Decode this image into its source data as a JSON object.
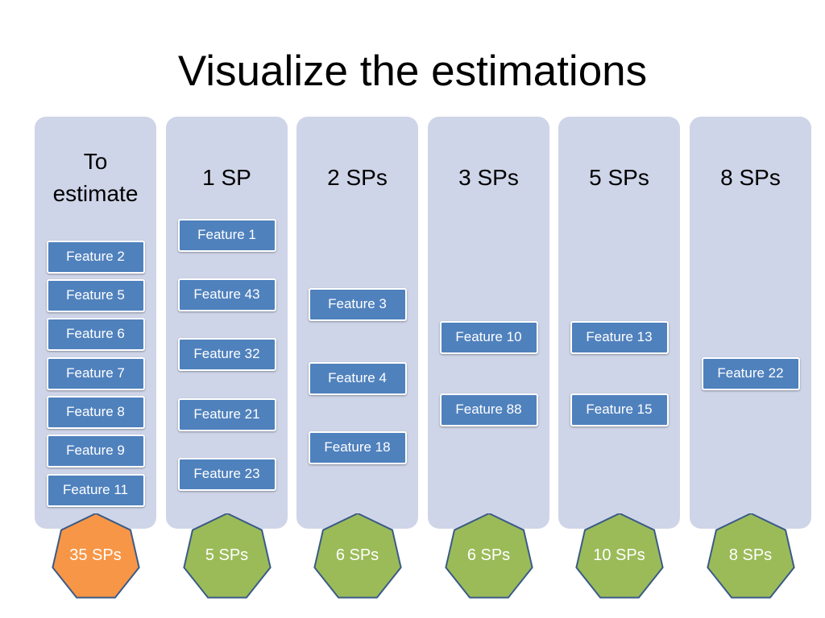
{
  "title": "Visualize the estimations",
  "colors": {
    "column_bg": "#cfd5e8",
    "card_bg": "#4f81bd",
    "card_border": "#ffffff",
    "badge_green": "#9bbb59",
    "badge_orange": "#f79646",
    "badge_outline": "#3a5a87"
  },
  "columns": [
    {
      "id": "to-estimate",
      "header_lines": [
        "To",
        "estimate"
      ],
      "cards": [
        "Feature 2",
        "Feature 5",
        "Feature 6",
        "Feature 7",
        "Feature 8",
        "Feature 9",
        "Feature 11"
      ],
      "total": "35 SPs",
      "total_color": "#f79646"
    },
    {
      "id": "1-sp",
      "header_lines": [
        "1 SP"
      ],
      "cards": [
        "Feature 1",
        "Feature 43",
        "Feature 32",
        "Feature 21",
        "Feature 23"
      ],
      "total": "5 SPs",
      "total_color": "#9bbb59"
    },
    {
      "id": "2-sps",
      "header_lines": [
        "2 SPs"
      ],
      "cards": [
        "Feature 3",
        "Feature 4",
        "Feature 18"
      ],
      "total": "6 SPs",
      "total_color": "#9bbb59"
    },
    {
      "id": "3-sps",
      "header_lines": [
        "3 SPs"
      ],
      "cards": [
        "Feature 10",
        "Feature 88"
      ],
      "total": "6 SPs",
      "total_color": "#9bbb59"
    },
    {
      "id": "5-sps",
      "header_lines": [
        "5 SPs"
      ],
      "cards": [
        "Feature 13",
        "Feature 15"
      ],
      "total": "10 SPs",
      "total_color": "#9bbb59"
    },
    {
      "id": "8-sps",
      "header_lines": [
        "8 SPs"
      ],
      "cards": [
        "Feature 22"
      ],
      "total": "8 SPs",
      "total_color": "#9bbb59"
    }
  ]
}
